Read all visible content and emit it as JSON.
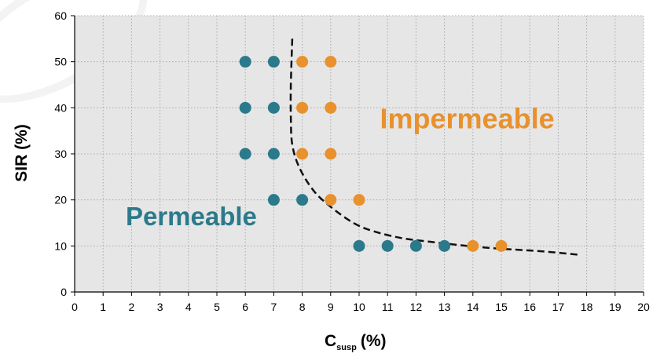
{
  "chart_data": {
    "type": "scatter",
    "xlabel_main": "C",
    "xlabel_sub": "susp",
    "xlabel_unit": "(%)",
    "ylabel": "SIR (%)",
    "xlim": [
      0,
      20
    ],
    "ylim": [
      0,
      60
    ],
    "xticks": [
      0,
      1,
      2,
      3,
      4,
      5,
      6,
      7,
      8,
      9,
      10,
      11,
      12,
      13,
      14,
      15,
      16,
      17,
      18,
      19,
      20
    ],
    "yticks": [
      0,
      10,
      20,
      30,
      40,
      50,
      60
    ],
    "grid": true,
    "background": "#e6e6e6",
    "annotations": [
      {
        "name": "permeable",
        "text": "Permeable",
        "x": 4.1,
        "y": 14.5,
        "color": "#2b7a8b"
      },
      {
        "name": "impermeable",
        "text": "Impermeable",
        "x": 13.8,
        "y": 35.5,
        "color": "#e8912d"
      }
    ],
    "series": [
      {
        "key": "permeable",
        "color": "#2b7a8b",
        "points": [
          [
            6,
            50
          ],
          [
            7,
            50
          ],
          [
            6,
            40
          ],
          [
            7,
            40
          ],
          [
            6,
            30
          ],
          [
            7,
            30
          ],
          [
            7,
            20
          ],
          [
            8,
            20
          ],
          [
            10,
            10
          ],
          [
            11,
            10
          ],
          [
            12,
            10
          ],
          [
            13,
            10
          ]
        ]
      },
      {
        "key": "impermeable",
        "color": "#e8912d",
        "points": [
          [
            8,
            50
          ],
          [
            9,
            50
          ],
          [
            8,
            40
          ],
          [
            9,
            40
          ],
          [
            8,
            30
          ],
          [
            9,
            30
          ],
          [
            9,
            20
          ],
          [
            10,
            20
          ],
          [
            14,
            10
          ],
          [
            15,
            10
          ]
        ]
      }
    ],
    "boundary": {
      "style": "dashed",
      "color": "#111111",
      "points": [
        [
          7.65,
          55
        ],
        [
          7.6,
          45
        ],
        [
          7.6,
          38
        ],
        [
          7.65,
          32
        ],
        [
          7.9,
          27
        ],
        [
          8.4,
          22
        ],
        [
          9.0,
          18.5
        ],
        [
          9.8,
          15
        ],
        [
          10.5,
          13.2
        ],
        [
          11.5,
          11.7
        ],
        [
          12.5,
          10.9
        ],
        [
          13.5,
          10.2
        ],
        [
          14.5,
          9.6
        ],
        [
          15.5,
          9.2
        ],
        [
          16.5,
          8.8
        ],
        [
          17.7,
          8.1
        ]
      ]
    }
  }
}
